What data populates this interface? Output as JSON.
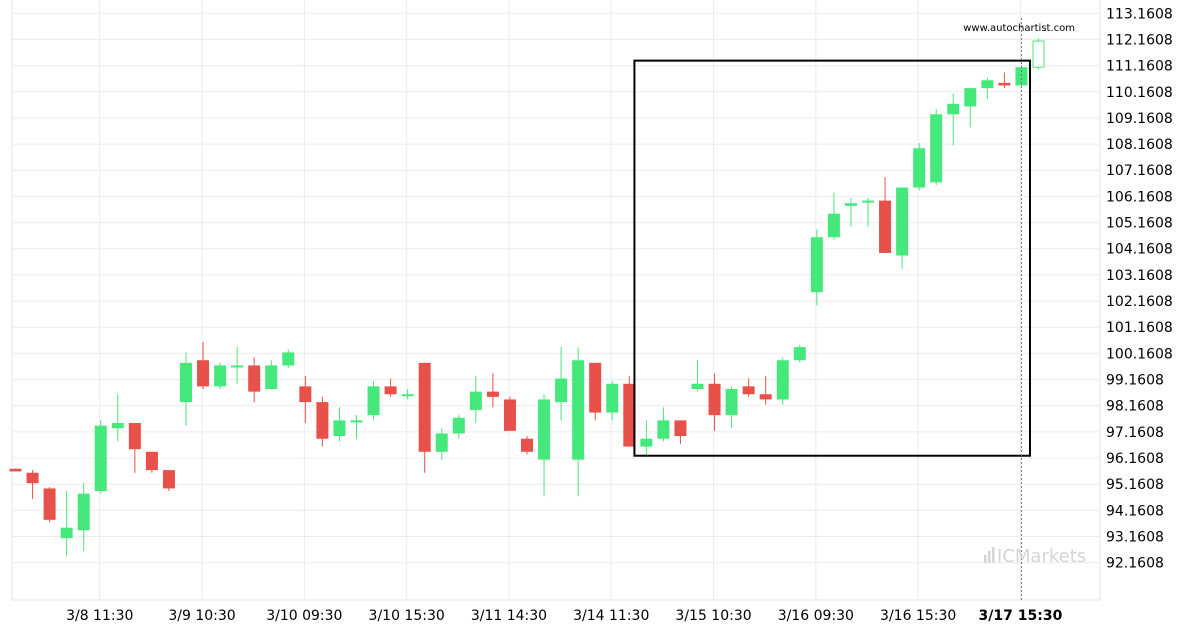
{
  "source_text": "www.autochartist.com",
  "logo_text": "ICMarkets",
  "colors": {
    "up": "#45e87a",
    "down": "#e8504a",
    "frame": "#000000",
    "grid": "#ececec",
    "axis_text": "#000000",
    "logo": "#d5d5d5"
  },
  "chart_data": {
    "type": "candlestick",
    "ylim": [
      91.5,
      113.4
    ],
    "y_ticks": [
      {
        "value": 92.1608,
        "label": "92.1608"
      },
      {
        "value": 93.1608,
        "label": "93.1608"
      },
      {
        "value": 94.1608,
        "label": "94.1608"
      },
      {
        "value": 95.1608,
        "label": "95.1608"
      },
      {
        "value": 96.1608,
        "label": "96.1608"
      },
      {
        "value": 97.1608,
        "label": "97.1608"
      },
      {
        "value": 98.1608,
        "label": "98.1608"
      },
      {
        "value": 99.1608,
        "label": "99.1608"
      },
      {
        "value": 100.1608,
        "label": "100.1608"
      },
      {
        "value": 101.1608,
        "label": "101.1608"
      },
      {
        "value": 102.1608,
        "label": "102.1608"
      },
      {
        "value": 103.1608,
        "label": "103.1608"
      },
      {
        "value": 104.1608,
        "label": "104.1608"
      },
      {
        "value": 105.1608,
        "label": "105.1608"
      },
      {
        "value": 106.1608,
        "label": "106.1608"
      },
      {
        "value": 107.1608,
        "label": "107.1608"
      },
      {
        "value": 108.1608,
        "label": "108.1608"
      },
      {
        "value": 109.1608,
        "label": "109.1608"
      },
      {
        "value": 110.1608,
        "label": "110.1608"
      },
      {
        "value": 111.1608,
        "label": "111.1608"
      },
      {
        "value": 112.1608,
        "label": "112.1608"
      },
      {
        "value": 113.1608,
        "label": "113.1608"
      }
    ],
    "x_ticks": [
      {
        "index": 5,
        "label": "3/8 11:30",
        "bold": false
      },
      {
        "index": 11,
        "label": "3/9 10:30",
        "bold": false
      },
      {
        "index": 17,
        "label": "3/10 09:30",
        "bold": false
      },
      {
        "index": 23,
        "label": "3/10 15:30",
        "bold": false
      },
      {
        "index": 29,
        "label": "3/11 14:30",
        "bold": false
      },
      {
        "index": 35,
        "label": "3/14 11:30",
        "bold": false
      },
      {
        "index": 41,
        "label": "3/15 10:30",
        "bold": false
      },
      {
        "index": 47,
        "label": "3/16 09:30",
        "bold": false
      },
      {
        "index": 53,
        "label": "3/16 15:30",
        "bold": false
      },
      {
        "index": 59,
        "label": "3/17 15:30",
        "bold": true
      }
    ],
    "candles": [
      {
        "o": 95.75,
        "h": 95.75,
        "l": 95.65,
        "c": 95.65
      },
      {
        "o": 95.6,
        "h": 95.7,
        "l": 94.6,
        "c": 95.2
      },
      {
        "o": 95.0,
        "h": 95.05,
        "l": 93.7,
        "c": 93.8
      },
      {
        "o": 93.1,
        "h": 94.9,
        "l": 92.4,
        "c": 93.5
      },
      {
        "o": 93.4,
        "h": 95.2,
        "l": 92.6,
        "c": 94.8
      },
      {
        "o": 94.9,
        "h": 97.6,
        "l": 94.8,
        "c": 97.4
      },
      {
        "o": 97.3,
        "h": 98.6,
        "l": 96.8,
        "c": 97.5
      },
      {
        "o": 97.5,
        "h": 97.5,
        "l": 95.6,
        "c": 96.5
      },
      {
        "o": 96.4,
        "h": 96.4,
        "l": 95.6,
        "c": 95.7
      },
      {
        "o": 95.7,
        "h": 95.7,
        "l": 94.9,
        "c": 95.0
      },
      {
        "o": 98.3,
        "h": 100.2,
        "l": 97.4,
        "c": 99.8
      },
      {
        "o": 99.9,
        "h": 100.6,
        "l": 98.8,
        "c": 98.9
      },
      {
        "o": 98.9,
        "h": 99.8,
        "l": 98.8,
        "c": 99.7
      },
      {
        "o": 99.7,
        "h": 100.4,
        "l": 99.0,
        "c": 99.7
      },
      {
        "o": 99.7,
        "h": 100.0,
        "l": 98.3,
        "c": 98.7
      },
      {
        "o": 98.8,
        "h": 99.9,
        "l": 98.8,
        "c": 99.7
      },
      {
        "o": 99.7,
        "h": 100.3,
        "l": 99.6,
        "c": 100.2
      },
      {
        "o": 98.9,
        "h": 99.3,
        "l": 97.5,
        "c": 98.3
      },
      {
        "o": 98.3,
        "h": 98.5,
        "l": 96.6,
        "c": 96.9
      },
      {
        "o": 97.0,
        "h": 98.1,
        "l": 96.8,
        "c": 97.6
      },
      {
        "o": 97.6,
        "h": 97.8,
        "l": 96.9,
        "c": 97.6
      },
      {
        "o": 97.8,
        "h": 99.1,
        "l": 97.6,
        "c": 98.9
      },
      {
        "o": 98.9,
        "h": 99.2,
        "l": 98.5,
        "c": 98.6
      },
      {
        "o": 98.6,
        "h": 98.8,
        "l": 98.4,
        "c": 98.6
      },
      {
        "o": 99.8,
        "h": 99.8,
        "l": 95.6,
        "c": 96.4
      },
      {
        "o": 96.4,
        "h": 97.3,
        "l": 96.1,
        "c": 97.1
      },
      {
        "o": 97.1,
        "h": 97.8,
        "l": 96.9,
        "c": 97.7
      },
      {
        "o": 98.0,
        "h": 99.3,
        "l": 97.5,
        "c": 98.7
      },
      {
        "o": 98.7,
        "h": 99.4,
        "l": 98.1,
        "c": 98.5
      },
      {
        "o": 98.4,
        "h": 98.5,
        "l": 97.2,
        "c": 97.2
      },
      {
        "o": 96.9,
        "h": 97.0,
        "l": 96.3,
        "c": 96.4
      },
      {
        "o": 96.1,
        "h": 98.6,
        "l": 94.7,
        "c": 98.4
      },
      {
        "o": 98.3,
        "h": 100.4,
        "l": 97.6,
        "c": 99.2
      },
      {
        "o": 96.1,
        "h": 100.4,
        "l": 94.7,
        "c": 99.9
      },
      {
        "o": 99.8,
        "h": 99.8,
        "l": 97.6,
        "c": 97.9
      },
      {
        "o": 97.9,
        "h": 99.1,
        "l": 97.6,
        "c": 99.0
      },
      {
        "o": 99.0,
        "h": 99.3,
        "l": 96.6,
        "c": 96.6
      },
      {
        "o": 96.6,
        "h": 97.6,
        "l": 96.2,
        "c": 96.9
      },
      {
        "o": 96.9,
        "h": 98.1,
        "l": 96.8,
        "c": 97.6
      },
      {
        "o": 97.6,
        "h": 97.6,
        "l": 96.7,
        "c": 97.0
      },
      {
        "o": 98.8,
        "h": 99.9,
        "l": 98.7,
        "c": 99.0
      },
      {
        "o": 99.0,
        "h": 99.4,
        "l": 97.2,
        "c": 97.8
      },
      {
        "o": 97.8,
        "h": 98.9,
        "l": 97.3,
        "c": 98.8
      },
      {
        "o": 98.9,
        "h": 99.2,
        "l": 98.5,
        "c": 98.6
      },
      {
        "o": 98.6,
        "h": 99.3,
        "l": 98.2,
        "c": 98.4
      },
      {
        "o": 98.4,
        "h": 100.0,
        "l": 98.2,
        "c": 99.9
      },
      {
        "o": 99.9,
        "h": 100.5,
        "l": 99.8,
        "c": 100.4
      },
      {
        "o": 102.5,
        "h": 104.9,
        "l": 102.0,
        "c": 104.6
      },
      {
        "o": 104.6,
        "h": 106.3,
        "l": 104.5,
        "c": 105.5
      },
      {
        "o": 105.8,
        "h": 106.1,
        "l": 105.0,
        "c": 105.9
      },
      {
        "o": 106.0,
        "h": 106.1,
        "l": 105.0,
        "c": 106.0
      },
      {
        "o": 106.0,
        "h": 106.9,
        "l": 104.0,
        "c": 104.0
      },
      {
        "o": 103.9,
        "h": 106.5,
        "l": 103.4,
        "c": 106.5
      },
      {
        "o": 106.5,
        "h": 108.2,
        "l": 106.4,
        "c": 108.0
      },
      {
        "o": 106.7,
        "h": 109.5,
        "l": 106.6,
        "c": 109.3
      },
      {
        "o": 109.3,
        "h": 110.1,
        "l": 108.1,
        "c": 109.7
      },
      {
        "o": 109.6,
        "h": 110.3,
        "l": 108.8,
        "c": 110.3
      },
      {
        "o": 110.3,
        "h": 110.7,
        "l": 109.9,
        "c": 110.6
      },
      {
        "o": 110.5,
        "h": 110.9,
        "l": 110.3,
        "c": 110.4
      },
      {
        "o": 110.4,
        "h": 111.1,
        "l": 110.3,
        "c": 111.1
      },
      {
        "o": 111.1,
        "h": 112.2,
        "l": 111.0,
        "c": 112.1,
        "hollow": true
      }
    ],
    "pattern_box": {
      "x_start_index": 36.3,
      "x_end_index": 59.5,
      "y_low": 96.25,
      "y_high": 111.35
    },
    "marker_index": 59
  }
}
